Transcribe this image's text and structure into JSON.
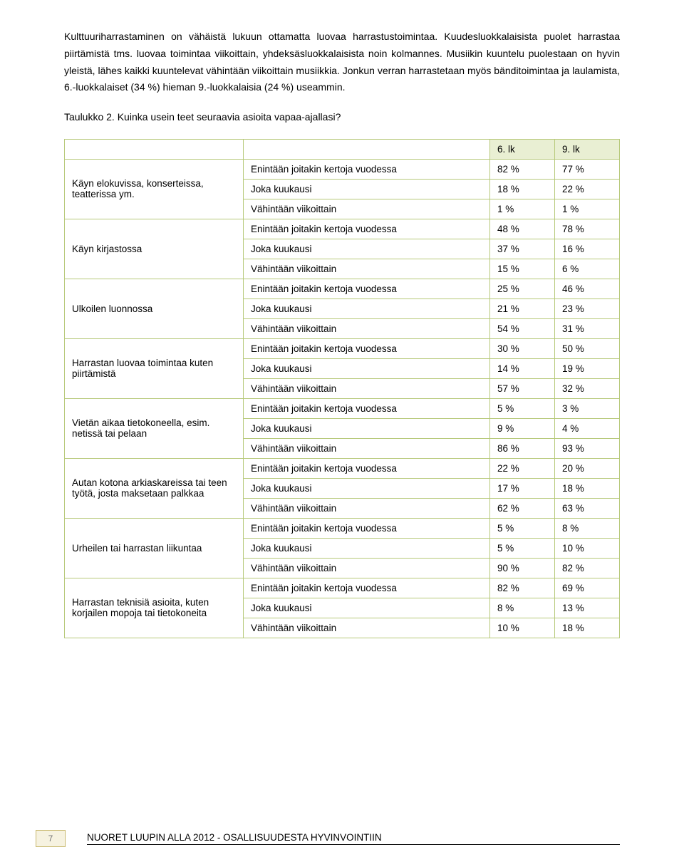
{
  "intro": {
    "para1": "Kulttuuriharrastaminen on vähäistä lukuun ottamatta luovaa harrastustoimintaa. Kuudesluokkalaisista puolet harrastaa piirtämistä tms. luovaa toimintaa viikoittain, yhdeksäsluokkalaisista noin kolmannes. Musiikin kuuntelu puolestaan on hyvin yleistä, lähes kaikki kuuntelevat vähintään viikoittain musiikkia. Jonkun verran harrastetaan myös bänditoimintaa ja laulamista, 6.-luokkalaiset (34 %) hieman 9.-luokkalaisia (24 %) useammin.",
    "caption": "Taulukko 2.   Kuinka usein teet seuraavia asioita vapaa-ajallasi?"
  },
  "table": {
    "header": {
      "col1": "",
      "col2": "",
      "g6": "6. lk",
      "g9": "9. lk"
    },
    "freq_labels": {
      "a": "Enintään joitakin kertoja vuodessa",
      "b": "Joka kuukausi",
      "c": "Vähintään viikoittain"
    },
    "categories": [
      {
        "label": "Käyn elokuvissa, konserteissa, teatterissa ym.",
        "rows": [
          {
            "g6": "82 %",
            "g9": "77 %"
          },
          {
            "g6": "18 %",
            "g9": "22 %"
          },
          {
            "g6": "1 %",
            "g9": "1 %"
          }
        ]
      },
      {
        "label": "Käyn kirjastossa",
        "rows": [
          {
            "g6": "48 %",
            "g9": "78 %"
          },
          {
            "g6": "37 %",
            "g9": "16 %"
          },
          {
            "g6": "15 %",
            "g9": "6 %"
          }
        ]
      },
      {
        "label": "Ulkoilen luonnossa",
        "rows": [
          {
            "g6": "25 %",
            "g9": "46 %"
          },
          {
            "g6": "21 %",
            "g9": "23 %"
          },
          {
            "g6": "54 %",
            "g9": "31 %"
          }
        ]
      },
      {
        "label": "Harrastan luovaa toimintaa kuten piirtämistä",
        "rows": [
          {
            "g6": "30 %",
            "g9": "50 %"
          },
          {
            "g6": "14 %",
            "g9": "19 %"
          },
          {
            "g6": "57 %",
            "g9": "32 %"
          }
        ]
      },
      {
        "label": "Vietän aikaa tietokoneella, esim. netissä tai pelaan",
        "rows": [
          {
            "g6": "5 %",
            "g9": "3 %"
          },
          {
            "g6": "9 %",
            "g9": "4 %"
          },
          {
            "g6": "86 %",
            "g9": "93 %"
          }
        ]
      },
      {
        "label": "Autan kotona arkiaskareissa tai teen työtä, josta maksetaan palkkaa",
        "rows": [
          {
            "g6": "22 %",
            "g9": "20 %"
          },
          {
            "g6": "17 %",
            "g9": "18 %"
          },
          {
            "g6": "62 %",
            "g9": "63 %"
          }
        ]
      },
      {
        "label": "Urheilen tai harrastan liikuntaa",
        "rows": [
          {
            "g6": "5 %",
            "g9": "8 %"
          },
          {
            "g6": "5 %",
            "g9": "10 %"
          },
          {
            "g6": "90 %",
            "g9": "82 %"
          }
        ]
      },
      {
        "label": "Harrastan teknisiä asioita, kuten korjailen mopoja tai tietokoneita",
        "rows": [
          {
            "g6": "82 %",
            "g9": "69 %"
          },
          {
            "g6": "8 %",
            "g9": "13 %"
          },
          {
            "g6": "10 %",
            "g9": "18 %"
          }
        ]
      }
    ],
    "border_color": "#b7c97a",
    "header_bg": "#e9efd3"
  },
  "footer": {
    "page_number": "7",
    "title": "NUORET LUUPIN ALLA 2012 - OSALLISUUDESTA HYVINVOINTIIN"
  }
}
